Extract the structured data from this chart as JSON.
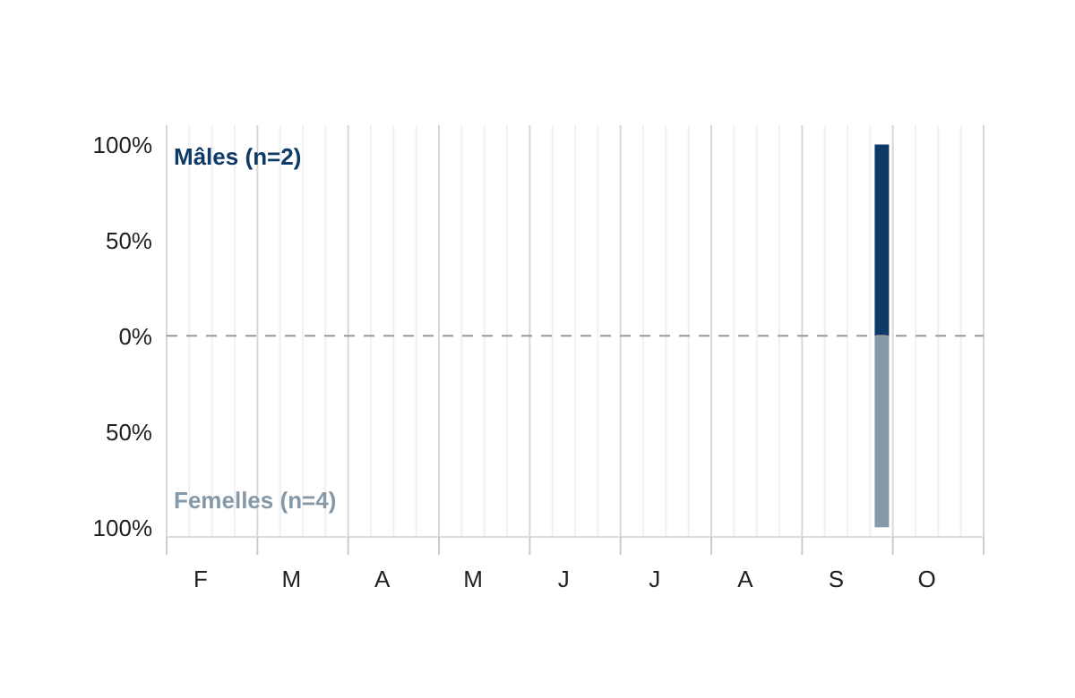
{
  "chart_data": {
    "type": "bar",
    "stacked": true,
    "categories": [
      null,
      "F",
      null,
      null,
      null,
      "M",
      null,
      null,
      null,
      "A",
      null,
      null,
      null,
      "M",
      null,
      null,
      null,
      "J",
      null,
      null,
      null,
      "J",
      null,
      null,
      null,
      "A",
      null,
      null,
      null,
      "S",
      null,
      null,
      null,
      "O",
      null,
      null
    ],
    "series": [
      {
        "name": "Mâles (n=2)",
        "color": "#0d3a66",
        "values": [
          null,
          null,
          null,
          null,
          null,
          null,
          null,
          null,
          null,
          null,
          null,
          null,
          null,
          null,
          null,
          null,
          null,
          null,
          null,
          null,
          null,
          null,
          null,
          null,
          null,
          null,
          null,
          null,
          null,
          null,
          null,
          100,
          null,
          null,
          null,
          null
        ]
      },
      {
        "name": "Femelles (n=4)",
        "color": "#8599a8",
        "values": [
          null,
          null,
          null,
          null,
          null,
          null,
          null,
          null,
          null,
          null,
          null,
          null,
          null,
          null,
          null,
          null,
          null,
          null,
          null,
          null,
          null,
          null,
          null,
          null,
          null,
          null,
          null,
          null,
          null,
          null,
          null,
          -100,
          null,
          null,
          null,
          null
        ]
      }
    ],
    "ylim": [
      -105,
      110
    ],
    "yticks": [
      {
        "value": -100,
        "label": "100%"
      },
      {
        "value": -50,
        "label": "50%"
      },
      {
        "value": 0,
        "label": "0%"
      },
      {
        "value": 50,
        "label": "50%"
      },
      {
        "value": 100,
        "label": "100%"
      }
    ],
    "ref_lines": [
      {
        "axis": "y",
        "value": 0,
        "label": null,
        "color": "#999999",
        "line_style": "dashed"
      }
    ],
    "grid": "x",
    "legend": false
  }
}
